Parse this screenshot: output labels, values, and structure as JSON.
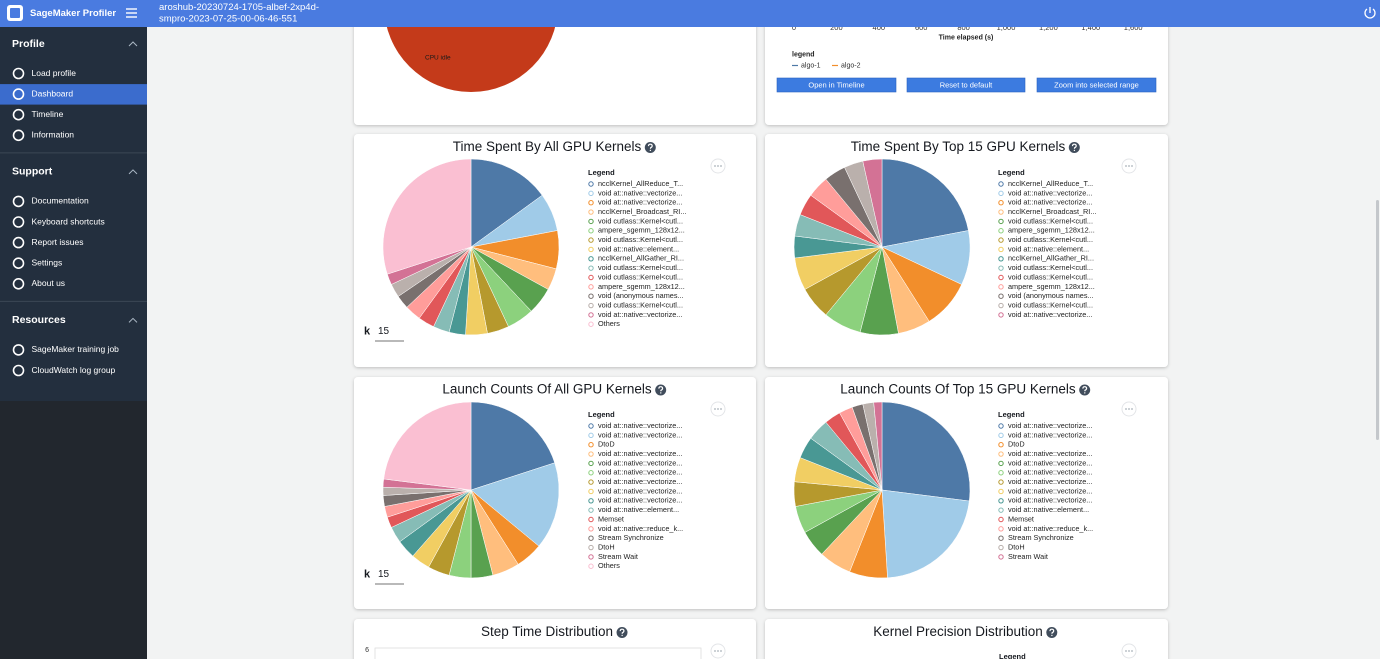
{
  "topbar": {
    "app_name": "SageMaker Profiler",
    "profile_name_lines": [
      "aroshub-20230724-1705-albef-2xp4d-",
      "smpro-2023-07-25-00-06-46-551"
    ]
  },
  "sidebar": {
    "sections": [
      {
        "title": "Profile",
        "items": [
          "Load profile",
          "Dashboard",
          "Timeline",
          "Information"
        ]
      },
      {
        "title": "Support",
        "items": [
          "Documentation",
          "Keyboard shortcuts",
          "Report issues",
          "Settings",
          "About us"
        ]
      },
      {
        "title": "Resources",
        "items": [
          "SageMaker training job",
          "CloudWatch log group"
        ]
      }
    ]
  },
  "cpu_card": {
    "slice_label": "CPU idle"
  },
  "timeline_card": {
    "x_ticks": [
      "0",
      "200",
      "400",
      "600",
      "800",
      "1,000",
      "1,200",
      "1,400",
      "1,600"
    ],
    "x_label": "Time elapsed (s)",
    "legend_title": "legend",
    "legend": [
      {
        "name": "algo-1",
        "color": "#4e79a7"
      },
      {
        "name": "algo-2",
        "color": "#f28e2b"
      }
    ],
    "buttons": [
      "Open in Timeline",
      "Reset to default",
      "Zoom into selected range"
    ]
  },
  "chart_data": [
    {
      "type": "pie",
      "title": "Time Spent By All GPU Kernels",
      "legend_title": "Legend",
      "k": {
        "label": "k",
        "value": "15"
      },
      "categories": [
        "ncclKernel_AllReduce_T...",
        "void at::native::vectorize...",
        "void at::native::vectorize...",
        "ncclKernel_Broadcast_RI...",
        "void cutlass::Kernel<cutl...",
        "ampere_sgemm_128x12...",
        "void cutlass::Kernel<cutl...",
        "void at::native::element...",
        "ncclKernel_AllGather_RI...",
        "void cutlass::Kernel<cutl...",
        "void cutlass::Kernel<cutl...",
        "ampere_sgemm_128x12...",
        "void (anonymous names...",
        "void cutlass::Kernel<cutl...",
        "void at::native::vectorize...",
        "Others"
      ],
      "values": [
        15,
        7,
        7,
        4,
        5,
        5,
        4,
        4,
        3,
        3,
        3,
        3,
        2.5,
        2.5,
        2,
        30
      ],
      "colors": [
        "#4e79a7",
        "#a0cbe8",
        "#f28e2b",
        "#ffbe7d",
        "#59a14f",
        "#8cd17d",
        "#b6992d",
        "#f1ce63",
        "#499894",
        "#86bcb6",
        "#e15759",
        "#ff9d9a",
        "#79706e",
        "#bab0ac",
        "#d37295",
        "#fabfd2"
      ]
    },
    {
      "type": "pie",
      "title": "Time Spent By Top 15 GPU Kernels",
      "legend_title": "Legend",
      "categories": [
        "ncclKernel_AllReduce_T...",
        "void at::native::vectorize...",
        "void at::native::vectorize...",
        "ncclKernel_Broadcast_RI...",
        "void cutlass::Kernel<cutl...",
        "ampere_sgemm_128x12...",
        "void cutlass::Kernel<cutl...",
        "void at::native::element...",
        "ncclKernel_AllGather_RI...",
        "void cutlass::Kernel<cutl...",
        "void cutlass::Kernel<cutl...",
        "ampere_sgemm_128x12...",
        "void (anonymous names...",
        "void cutlass::Kernel<cutl...",
        "void at::native::vectorize..."
      ],
      "values": [
        22,
        10,
        9,
        6,
        7,
        7,
        6,
        6,
        4,
        4,
        4,
        4,
        4,
        3.5,
        3.5
      ],
      "colors": [
        "#4e79a7",
        "#a0cbe8",
        "#f28e2b",
        "#ffbe7d",
        "#59a14f",
        "#8cd17d",
        "#b6992d",
        "#f1ce63",
        "#499894",
        "#86bcb6",
        "#e15759",
        "#ff9d9a",
        "#79706e",
        "#bab0ac",
        "#d37295"
      ]
    },
    {
      "type": "pie",
      "title": "Launch Counts Of All GPU Kernels",
      "legend_title": "Legend",
      "k": {
        "label": "k",
        "value": "15"
      },
      "categories": [
        "void at::native::vectorize...",
        "void at::native::vectorize...",
        "DtoD",
        "void at::native::vectorize...",
        "void at::native::vectorize...",
        "void at::native::vectorize...",
        "void at::native::vectorize...",
        "void at::native::vectorize...",
        "void at::native::vectorize...",
        "void at::native::element...",
        "Memset",
        "void at::native::reduce_k...",
        "Stream Synchronize",
        "DtoH",
        "Stream Wait",
        "Others"
      ],
      "values": [
        20,
        16,
        5,
        5,
        4,
        4,
        4,
        3.5,
        3.5,
        3,
        2,
        2,
        2,
        1.5,
        1.5,
        23
      ],
      "colors": [
        "#4e79a7",
        "#a0cbe8",
        "#f28e2b",
        "#ffbe7d",
        "#59a14f",
        "#8cd17d",
        "#b6992d",
        "#f1ce63",
        "#499894",
        "#86bcb6",
        "#e15759",
        "#ff9d9a",
        "#79706e",
        "#bab0ac",
        "#d37295",
        "#fabfd2"
      ]
    },
    {
      "type": "pie",
      "title": "Launch Counts Of Top 15 GPU Kernels",
      "legend_title": "Legend",
      "categories": [
        "void at::native::vectorize...",
        "void at::native::vectorize...",
        "DtoD",
        "void at::native::vectorize...",
        "void at::native::vectorize...",
        "void at::native::vectorize...",
        "void at::native::vectorize...",
        "void at::native::vectorize...",
        "void at::native::vectorize...",
        "void at::native::element...",
        "Memset",
        "void at::native::reduce_k...",
        "Stream Synchronize",
        "DtoH",
        "Stream Wait"
      ],
      "values": [
        27,
        22,
        7,
        6,
        5,
        5,
        4.5,
        4.5,
        4,
        4,
        3,
        2.5,
        2,
        2,
        1.5
      ],
      "colors": [
        "#4e79a7",
        "#a0cbe8",
        "#f28e2b",
        "#ffbe7d",
        "#59a14f",
        "#8cd17d",
        "#b6992d",
        "#f1ce63",
        "#499894",
        "#86bcb6",
        "#e15759",
        "#ff9d9a",
        "#79706e",
        "#bab0ac",
        "#d37295"
      ]
    }
  ],
  "bottom_cards": [
    {
      "title": "Step Time Distribution",
      "y_tick": "6"
    },
    {
      "title": "Kernel Precision Distribution",
      "legend_title": "Legend"
    }
  ]
}
